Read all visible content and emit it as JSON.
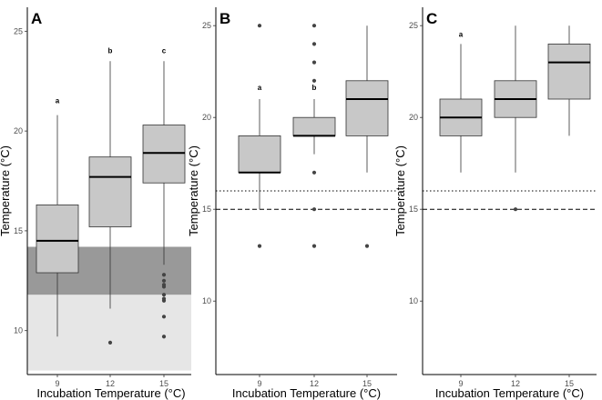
{
  "chart_data": [
    {
      "type": "boxplot",
      "panel_label": "A",
      "xlabel": "Incubation Temperature (°C)",
      "ylabel": "Temperature (°C)",
      "categories": [
        "9",
        "12",
        "15"
      ],
      "ylim": [
        7.8,
        26.2
      ],
      "yticks": [
        "10",
        "15",
        "20",
        "25"
      ],
      "boxes": [
        {
          "category": "9",
          "whisker_low": 9.7,
          "q1": 12.9,
          "median": 14.5,
          "q3": 16.3,
          "whisker_high": 20.8,
          "outliers": []
        },
        {
          "category": "12",
          "whisker_low": 11.1,
          "q1": 15.2,
          "median": 17.7,
          "q3": 18.7,
          "whisker_high": 23.5,
          "outliers": [
            9.4
          ]
        },
        {
          "category": "15",
          "whisker_low": 13.3,
          "q1": 17.4,
          "median": 18.9,
          "q3": 20.3,
          "whisker_high": 23.5,
          "outliers": [
            12.8,
            12.5,
            12.3,
            12.2,
            11.8,
            11.6,
            11.5,
            10.7,
            9.7
          ]
        }
      ],
      "letters": [
        {
          "category": "9",
          "text": "a",
          "y": 21.4
        },
        {
          "category": "12",
          "text": "b",
          "y": 23.9
        },
        {
          "category": "15",
          "text": "c",
          "y": 23.9
        }
      ],
      "bands": [
        {
          "from": 8.0,
          "to": 11.8,
          "color": "#e6e6e6"
        },
        {
          "from": 11.8,
          "to": 14.2,
          "color": "#999999"
        }
      ],
      "reference_lines": []
    },
    {
      "type": "boxplot",
      "panel_label": "B",
      "xlabel": "Incubation Temperature (°C)",
      "ylabel": "Temperature (°C)",
      "categories": [
        "9",
        "12",
        "15"
      ],
      "ylim": [
        6.0,
        26.0
      ],
      "yticks": [
        "10",
        "15",
        "20",
        "25"
      ],
      "boxes": [
        {
          "category": "9",
          "whisker_low": 15.0,
          "q1": 17.0,
          "median": 17.0,
          "q3": 19.0,
          "whisker_high": 21.0,
          "outliers": [
            25.0,
            13.0
          ]
        },
        {
          "category": "12",
          "whisker_low": 18.0,
          "q1": 19.0,
          "median": 19.0,
          "q3": 20.0,
          "whisker_high": 21.0,
          "outliers": [
            25.0,
            24.0,
            23.0,
            22.0,
            17.0,
            15.0,
            13.0
          ]
        },
        {
          "category": "15",
          "whisker_low": 17.0,
          "q1": 19.0,
          "median": 21.0,
          "q3": 22.0,
          "whisker_high": 25.0,
          "outliers": [
            13.0
          ]
        }
      ],
      "letters": [
        {
          "category": "9",
          "text": "a",
          "y": 21.5
        },
        {
          "category": "12",
          "text": "b",
          "y": 21.5
        }
      ],
      "bands": [],
      "reference_lines": [
        {
          "y": 16.0,
          "style": "dotted"
        },
        {
          "y": 15.0,
          "style": "dashed"
        }
      ]
    },
    {
      "type": "boxplot",
      "panel_label": "C",
      "xlabel": "Incubation Temperature (°C)",
      "ylabel": "Temperature (°C)",
      "categories": [
        "9",
        "12",
        "15"
      ],
      "ylim": [
        6.0,
        26.0
      ],
      "yticks": [
        "10",
        "15",
        "20",
        "25"
      ],
      "boxes": [
        {
          "category": "9",
          "whisker_low": 17.0,
          "q1": 19.0,
          "median": 20.0,
          "q3": 21.0,
          "whisker_high": 24.0,
          "outliers": []
        },
        {
          "category": "12",
          "whisker_low": 17.0,
          "q1": 20.0,
          "median": 21.0,
          "q3": 22.0,
          "whisker_high": 25.0,
          "outliers": [
            15.0
          ]
        },
        {
          "category": "15",
          "whisker_low": 19.0,
          "q1": 21.0,
          "median": 23.0,
          "q3": 24.0,
          "whisker_high": 25.0,
          "outliers": []
        }
      ],
      "letters": [
        {
          "category": "9",
          "text": "a",
          "y": 24.4
        }
      ],
      "bands": [],
      "reference_lines": [
        {
          "y": 16.0,
          "style": "dotted"
        },
        {
          "y": 15.0,
          "style": "dashed"
        }
      ]
    }
  ]
}
